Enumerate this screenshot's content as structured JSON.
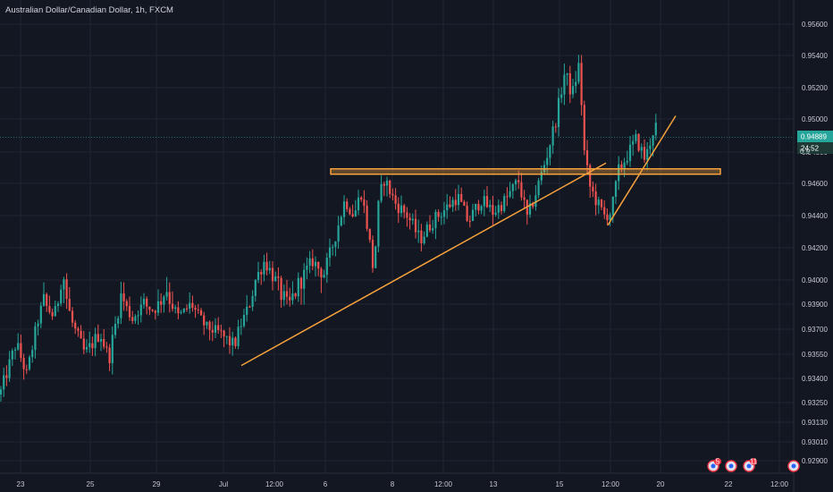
{
  "chart_data": {
    "type": "candlestick",
    "title": "Australian Dollar/Canadian Dollar, 1h, FXCM",
    "symbol": "Australian Dollar/Canadian Dollar",
    "interval": "1h",
    "source": "FXCM",
    "ylim": [
      0.9284,
      0.9574
    ],
    "y_ticks": [
      "0.95600",
      "0.95400",
      "0.95200",
      "0.95000",
      "0.94800",
      "0.94600",
      "0.94400",
      "0.94200",
      "0.94000",
      "0.93900",
      "0.93700",
      "0.93550",
      "0.93400",
      "0.93250",
      "0.93130",
      "0.93010",
      "0.92900"
    ],
    "x_ticks": [
      "23",
      "25",
      "29",
      "Jul",
      "12:00",
      "6",
      "8",
      "12:00",
      "13",
      "15",
      "12:00",
      "20",
      "22",
      "12:00"
    ],
    "current_price": "0.94889",
    "countdown": "24:52",
    "price_hidden": "0.9",
    "grid": true,
    "colors": {
      "background": "#131722",
      "grid": "#1f2433",
      "up": "#26a69a",
      "down": "#ef5350",
      "drawing": "#f7a23d",
      "price_label": "#26a69a",
      "text": "#c6c8ce"
    },
    "price_path": [
      {
        "t": 0,
        "p": 0.933
      },
      {
        "t": 18,
        "p": 0.9362
      },
      {
        "t": 30,
        "p": 0.9342
      },
      {
        "t": 48,
        "p": 0.9392
      },
      {
        "t": 60,
        "p": 0.938
      },
      {
        "t": 70,
        "p": 0.9405
      },
      {
        "t": 82,
        "p": 0.9372
      },
      {
        "t": 95,
        "p": 0.9355
      },
      {
        "t": 112,
        "p": 0.9368
      },
      {
        "t": 122,
        "p": 0.9352
      },
      {
        "t": 136,
        "p": 0.9395
      },
      {
        "t": 148,
        "p": 0.9378
      },
      {
        "t": 160,
        "p": 0.939
      },
      {
        "t": 172,
        "p": 0.9385
      },
      {
        "t": 186,
        "p": 0.9397
      },
      {
        "t": 200,
        "p": 0.938
      },
      {
        "t": 214,
        "p": 0.939
      },
      {
        "t": 230,
        "p": 0.9372
      },
      {
        "t": 244,
        "p": 0.9368
      },
      {
        "t": 262,
        "p": 0.936
      },
      {
        "t": 272,
        "p": 0.9378
      },
      {
        "t": 284,
        "p": 0.9398
      },
      {
        "t": 296,
        "p": 0.9412
      },
      {
        "t": 310,
        "p": 0.9398
      },
      {
        "t": 322,
        "p": 0.9388
      },
      {
        "t": 336,
        "p": 0.94
      },
      {
        "t": 350,
        "p": 0.9412
      },
      {
        "t": 362,
        "p": 0.9403
      },
      {
        "t": 374,
        "p": 0.9425
      },
      {
        "t": 386,
        "p": 0.945
      },
      {
        "t": 396,
        "p": 0.944
      },
      {
        "t": 404,
        "p": 0.9455
      },
      {
        "t": 412,
        "p": 0.943
      },
      {
        "t": 418,
        "p": 0.9405
      },
      {
        "t": 424,
        "p": 0.945
      },
      {
        "t": 430,
        "p": 0.9463
      },
      {
        "t": 442,
        "p": 0.9448
      },
      {
        "t": 456,
        "p": 0.944
      },
      {
        "t": 470,
        "p": 0.9425
      },
      {
        "t": 486,
        "p": 0.9438
      },
      {
        "t": 500,
        "p": 0.9445
      },
      {
        "t": 512,
        "p": 0.9452
      },
      {
        "t": 524,
        "p": 0.9436
      },
      {
        "t": 538,
        "p": 0.945
      },
      {
        "t": 552,
        "p": 0.9442
      },
      {
        "t": 566,
        "p": 0.945
      },
      {
        "t": 580,
        "p": 0.9462
      },
      {
        "t": 590,
        "p": 0.9438
      },
      {
        "t": 600,
        "p": 0.9455
      },
      {
        "t": 612,
        "p": 0.9478
      },
      {
        "t": 622,
        "p": 0.95
      },
      {
        "t": 632,
        "p": 0.953
      },
      {
        "t": 640,
        "p": 0.9515
      },
      {
        "t": 648,
        "p": 0.9535
      },
      {
        "t": 654,
        "p": 0.9478
      },
      {
        "t": 660,
        "p": 0.9458
      },
      {
        "t": 668,
        "p": 0.9448
      },
      {
        "t": 676,
        "p": 0.944
      },
      {
        "t": 684,
        "p": 0.9442
      },
      {
        "t": 692,
        "p": 0.9468
      },
      {
        "t": 702,
        "p": 0.9478
      },
      {
        "t": 712,
        "p": 0.9488
      },
      {
        "t": 722,
        "p": 0.9475
      },
      {
        "t": 730,
        "p": 0.9492
      },
      {
        "t": 736,
        "p": 0.9498
      }
    ],
    "drawings": [
      {
        "kind": "trendline",
        "name": "rising-support",
        "from": {
          "t": 270,
          "p": 0.9348
        },
        "to": {
          "t": 678,
          "p": 0.9473
        }
      },
      {
        "kind": "trendline",
        "name": "short-support",
        "from": {
          "t": 680,
          "p": 0.9434
        },
        "to": {
          "t": 756,
          "p": 0.9502
        }
      },
      {
        "kind": "zone",
        "name": "resistance-zone",
        "t0": 370,
        "t1": 806,
        "p0": 0.94693,
        "p1": 0.94667
      }
    ],
    "event_badges": [
      {
        "name": "event-badge-1",
        "label": "5",
        "t": 798
      },
      {
        "name": "event-badge-2",
        "label": "",
        "t": 818
      },
      {
        "name": "event-badge-3",
        "label": "11",
        "t": 838
      },
      {
        "name": "event-badge-4",
        "label": "",
        "t": 888
      }
    ]
  }
}
